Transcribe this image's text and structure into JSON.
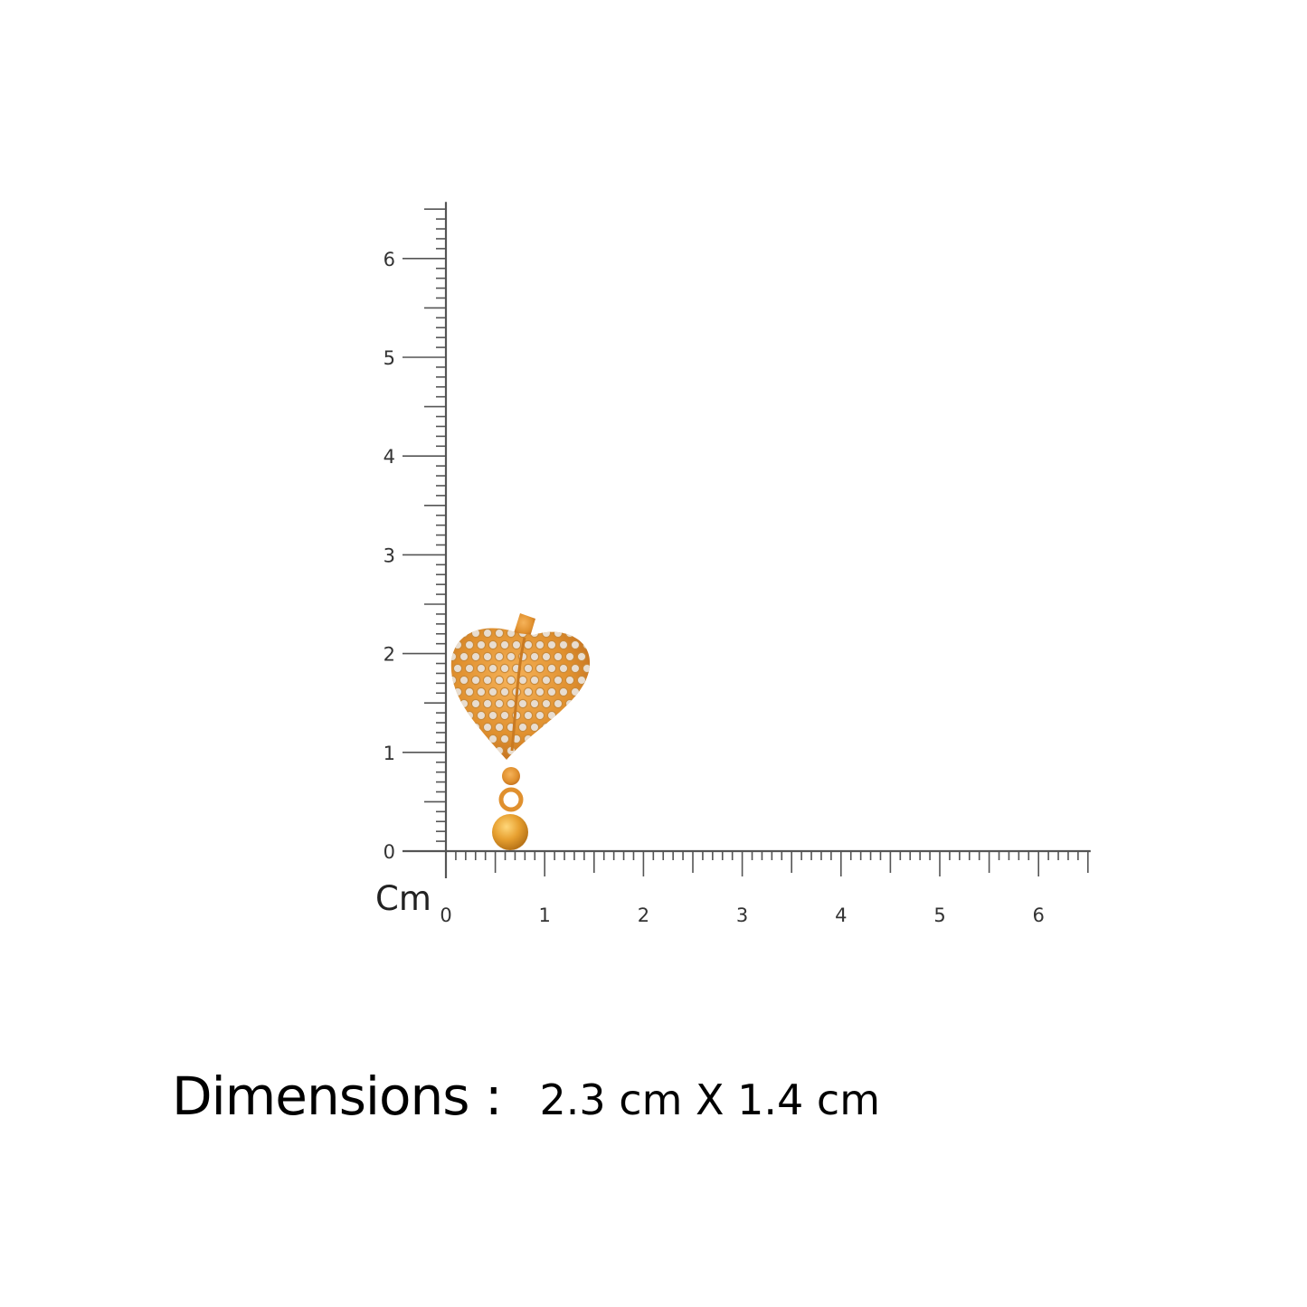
{
  "ruler": {
    "unit_label": "Cm",
    "vertical_labels": [
      "0",
      "1",
      "2",
      "3",
      "4",
      "5",
      "6"
    ],
    "horizontal_labels": [
      "0",
      "1",
      "2",
      "3",
      "4",
      "5",
      "6"
    ],
    "max_cm": 6.5,
    "line_color": "#555555"
  },
  "product": {
    "type": "heart-drop-earring",
    "metal_color": "#e0902e",
    "stone_color": "#e8ddd0"
  },
  "dimensions": {
    "label": "Dimensions :",
    "value": "2.3 cm X 1.4 cm"
  }
}
